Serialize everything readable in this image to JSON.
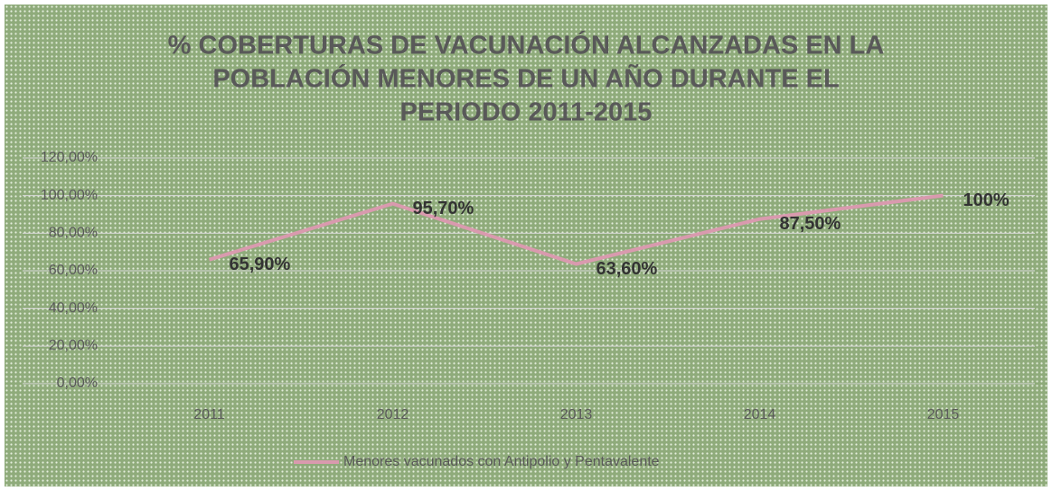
{
  "chart_data": {
    "type": "line",
    "title": [
      "% COBERTURAS DE VACUNACIÓN ALCANZADAS EN LA",
      "POBLACIÓN MENORES DE UN AÑO DURANTE EL",
      "PERIODO 2011-2015"
    ],
    "categories": [
      "2011",
      "2012",
      "2013",
      "2014",
      "2015"
    ],
    "series": [
      {
        "name": "Menores vacunados con Antipolio y Pentavalente",
        "color": "#d99aae",
        "values": [
          65.9,
          95.7,
          63.6,
          87.5,
          100
        ],
        "value_labels": [
          "65,90%",
          "95,70%",
          "63,60%",
          "87,50%",
          "100%"
        ]
      }
    ],
    "ylim": [
      0,
      120
    ],
    "yticks": [
      {
        "value": 0,
        "label": "0,00%"
      },
      {
        "value": 20,
        "label": "20,00%"
      },
      {
        "value": 40,
        "label": "40,00%"
      },
      {
        "value": 60,
        "label": "60,00%"
      },
      {
        "value": 80,
        "label": "80,00%"
      },
      {
        "value": 100,
        "label": "100,00%"
      },
      {
        "value": 120,
        "label": "120,00%"
      }
    ],
    "grid": true,
    "legend": "bottom"
  }
}
